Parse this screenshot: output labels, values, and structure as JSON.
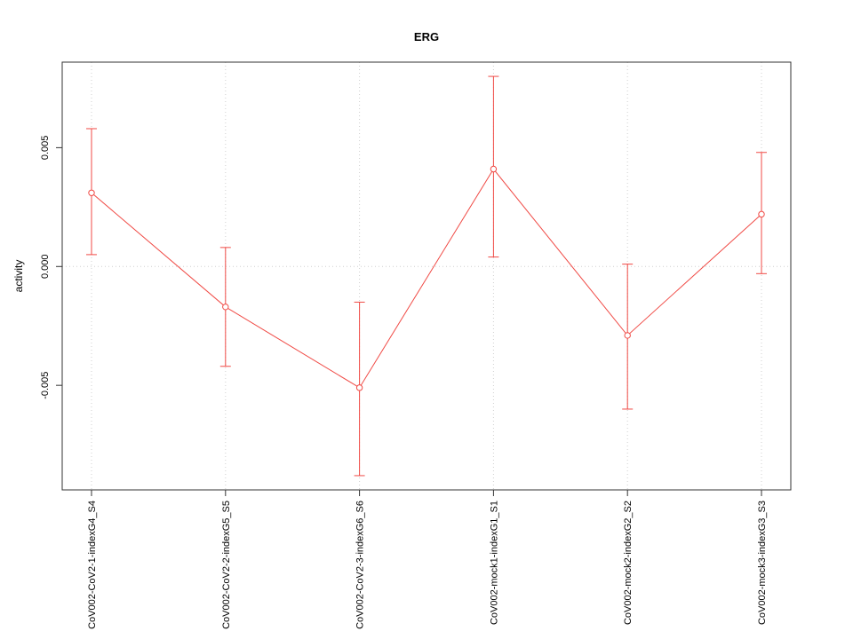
{
  "chart_data": {
    "type": "line",
    "title": "ERG",
    "xlabel": "",
    "ylabel": "activity",
    "categories": [
      "CoV002-CoV2-1-indexG4_S4",
      "CoV002-CoV2-2-indexG5_S5",
      "CoV002-CoV2-3-indexG6_S6",
      "CoV002-mock1-indexG1_S1",
      "CoV002-mock2-indexG2_S2",
      "CoV002-mock3-indexG3_S3"
    ],
    "series": [
      {
        "name": "activity",
        "means": [
          0.0031,
          -0.0017,
          -0.0051,
          0.0041,
          -0.0029,
          0.0022
        ],
        "upper": [
          0.0058,
          0.0008,
          -0.0015,
          0.008,
          0.0001,
          0.0048
        ],
        "lower": [
          0.0005,
          -0.0042,
          -0.0088,
          0.0004,
          -0.006,
          -0.0003
        ]
      }
    ],
    "ylim": [
      -0.0094,
      0.0086
    ],
    "yticks": [
      {
        "value": 0.005,
        "label": "0.005"
      },
      {
        "value": 0.0,
        "label": "0.000"
      },
      {
        "value": -0.005,
        "label": "-0.005"
      }
    ],
    "grid": "dotted vertical line at each category and dotted horizontal line at zero",
    "legend": "none",
    "marker": "open-circle",
    "error_bars": "capped vertical bars",
    "colors": {
      "series": "#f04a45",
      "grid": "#cfcfcf",
      "axis": "#333333"
    }
  }
}
